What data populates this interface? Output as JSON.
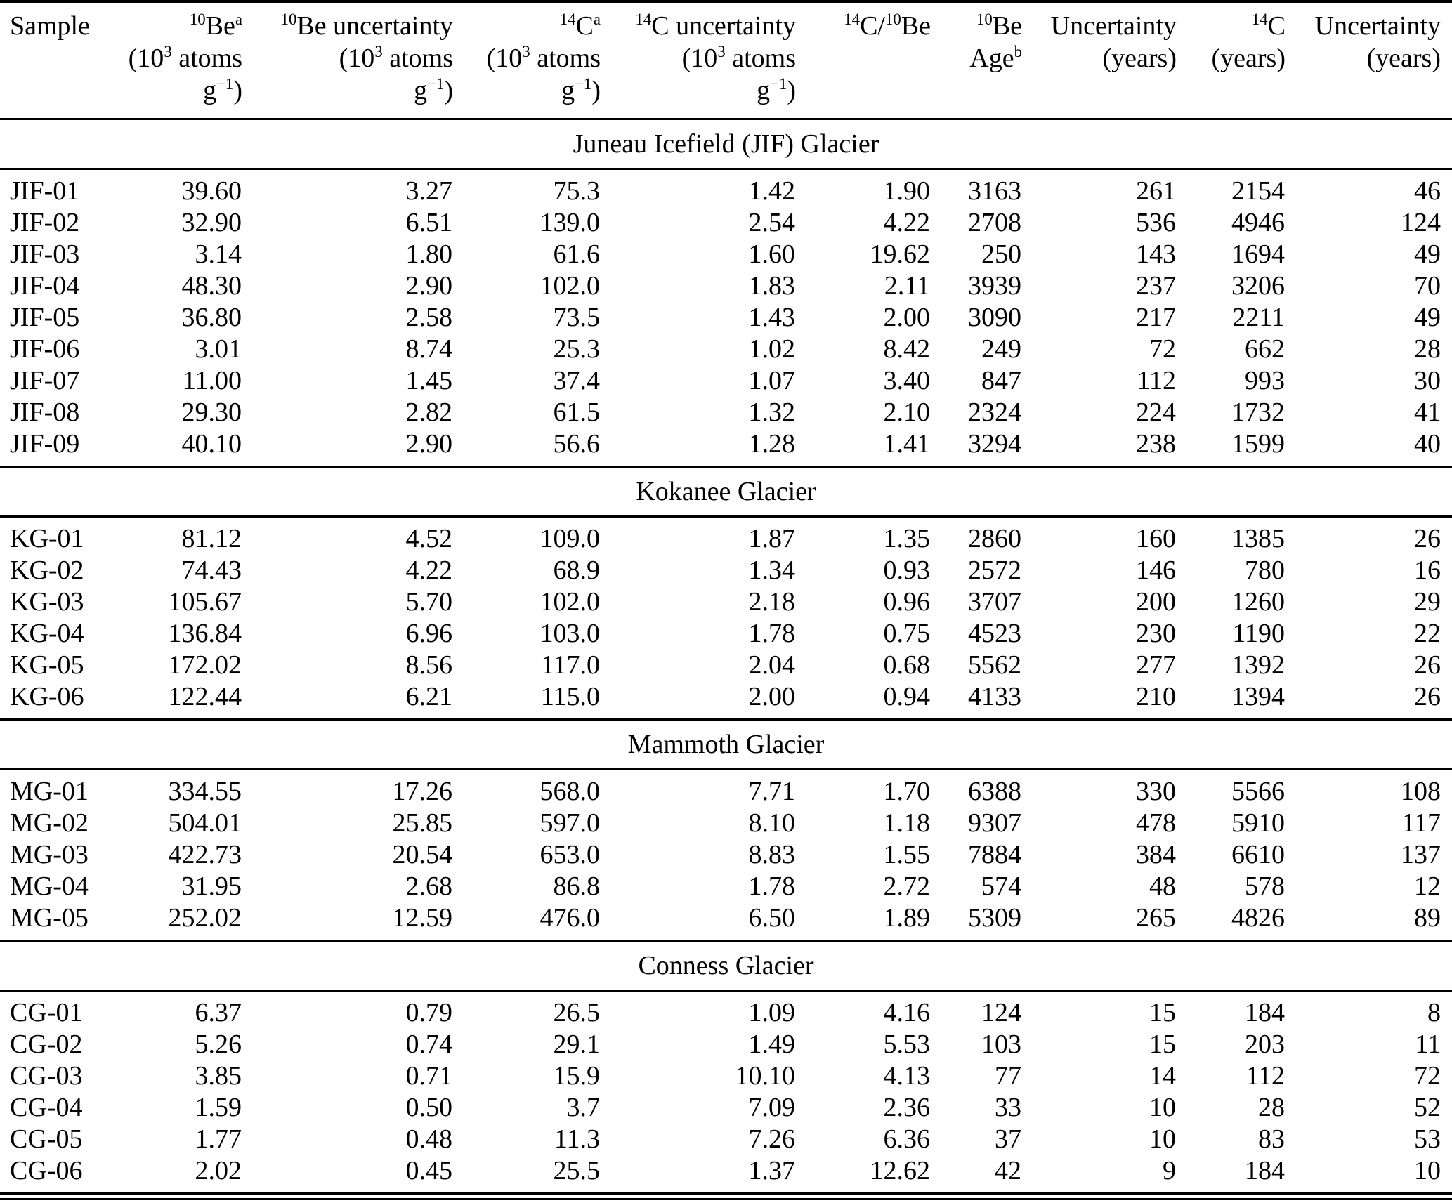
{
  "table": {
    "header": [
      {
        "lines": [
          "Sample"
        ],
        "align": "left"
      },
      {
        "lines": [
          "^{10}Be^{a}",
          "(10^{3} atoms",
          "g^{−1})"
        ],
        "align": "right"
      },
      {
        "lines": [
          "^{10}Be uncertainty",
          "(10^{3} atoms",
          "g^{−1})"
        ],
        "align": "right"
      },
      {
        "lines": [
          "^{14}C^{a}",
          "(10^{3} atoms",
          "g^{−1})"
        ],
        "align": "right"
      },
      {
        "lines": [
          "^{14}C uncertainty",
          "(10^{3} atoms",
          "g^{−1})"
        ],
        "align": "right"
      },
      {
        "lines": [
          "^{14}C/^{10}Be"
        ],
        "align": "right"
      },
      {
        "lines": [
          "^{10}Be",
          "Age^{b}"
        ],
        "align": "right"
      },
      {
        "lines": [
          "Uncertainty",
          "(years)"
        ],
        "align": "right"
      },
      {
        "lines": [
          "^{14}C",
          "(years)"
        ],
        "align": "right"
      },
      {
        "lines": [
          "Uncertainty",
          "(years)"
        ],
        "align": "right"
      }
    ],
    "sections": [
      {
        "title": "Juneau Icefield (JIF) Glacier",
        "rows": [
          [
            "JIF-01",
            "39.60",
            "3.27",
            "75.3",
            "1.42",
            "1.90",
            "3163",
            "261",
            "2154",
            "46"
          ],
          [
            "JIF-02",
            "32.90",
            "6.51",
            "139.0",
            "2.54",
            "4.22",
            "2708",
            "536",
            "4946",
            "124"
          ],
          [
            "JIF-03",
            "3.14",
            "1.80",
            "61.6",
            "1.60",
            "19.62",
            "250",
            "143",
            "1694",
            "49"
          ],
          [
            "JIF-04",
            "48.30",
            "2.90",
            "102.0",
            "1.83",
            "2.11",
            "3939",
            "237",
            "3206",
            "70"
          ],
          [
            "JIF-05",
            "36.80",
            "2.58",
            "73.5",
            "1.43",
            "2.00",
            "3090",
            "217",
            "2211",
            "49"
          ],
          [
            "JIF-06",
            "3.01",
            "8.74",
            "25.3",
            "1.02",
            "8.42",
            "249",
            "72",
            "662",
            "28"
          ],
          [
            "JIF-07",
            "11.00",
            "1.45",
            "37.4",
            "1.07",
            "3.40",
            "847",
            "112",
            "993",
            "30"
          ],
          [
            "JIF-08",
            "29.30",
            "2.82",
            "61.5",
            "1.32",
            "2.10",
            "2324",
            "224",
            "1732",
            "41"
          ],
          [
            "JIF-09",
            "40.10",
            "2.90",
            "56.6",
            "1.28",
            "1.41",
            "3294",
            "238",
            "1599",
            "40"
          ]
        ]
      },
      {
        "title": "Kokanee Glacier",
        "rows": [
          [
            "KG-01",
            "81.12",
            "4.52",
            "109.0",
            "1.87",
            "1.35",
            "2860",
            "160",
            "1385",
            "26"
          ],
          [
            "KG-02",
            "74.43",
            "4.22",
            "68.9",
            "1.34",
            "0.93",
            "2572",
            "146",
            "780",
            "16"
          ],
          [
            "KG-03",
            "105.67",
            "5.70",
            "102.0",
            "2.18",
            "0.96",
            "3707",
            "200",
            "1260",
            "29"
          ],
          [
            "KG-04",
            "136.84",
            "6.96",
            "103.0",
            "1.78",
            "0.75",
            "4523",
            "230",
            "1190",
            "22"
          ],
          [
            "KG-05",
            "172.02",
            "8.56",
            "117.0",
            "2.04",
            "0.68",
            "5562",
            "277",
            "1392",
            "26"
          ],
          [
            "KG-06",
            "122.44",
            "6.21",
            "115.0",
            "2.00",
            "0.94",
            "4133",
            "210",
            "1394",
            "26"
          ]
        ]
      },
      {
        "title": "Mammoth Glacier",
        "rows": [
          [
            "MG-01",
            "334.55",
            "17.26",
            "568.0",
            "7.71",
            "1.70",
            "6388",
            "330",
            "5566",
            "108"
          ],
          [
            "MG-02",
            "504.01",
            "25.85",
            "597.0",
            "8.10",
            "1.18",
            "9307",
            "478",
            "5910",
            "117"
          ],
          [
            "MG-03",
            "422.73",
            "20.54",
            "653.0",
            "8.83",
            "1.55",
            "7884",
            "384",
            "6610",
            "137"
          ],
          [
            "MG-04",
            "31.95",
            "2.68",
            "86.8",
            "1.78",
            "2.72",
            "574",
            "48",
            "578",
            "12"
          ],
          [
            "MG-05",
            "252.02",
            "12.59",
            "476.0",
            "6.50",
            "1.89",
            "5309",
            "265",
            "4826",
            "89"
          ]
        ]
      },
      {
        "title": "Conness Glacier",
        "rows": [
          [
            "CG-01",
            "6.37",
            "0.79",
            "26.5",
            "1.09",
            "4.16",
            "124",
            "15",
            "184",
            "8"
          ],
          [
            "CG-02",
            "5.26",
            "0.74",
            "29.1",
            "1.49",
            "5.53",
            "103",
            "15",
            "203",
            "11"
          ],
          [
            "CG-03",
            "3.85",
            "0.71",
            "15.9",
            "10.10",
            "4.13",
            "77",
            "14",
            "112",
            "72"
          ],
          [
            "CG-04",
            "1.59",
            "0.50",
            "3.7",
            "7.09",
            "2.36",
            "33",
            "10",
            "28",
            "52"
          ],
          [
            "CG-05",
            "1.77",
            "0.48",
            "11.3",
            "7.26",
            "6.36",
            "37",
            "10",
            "83",
            "53"
          ],
          [
            "CG-06",
            "2.02",
            "0.45",
            "25.5",
            "1.37",
            "12.62",
            "42",
            "9",
            "184",
            "10"
          ]
        ]
      }
    ]
  }
}
